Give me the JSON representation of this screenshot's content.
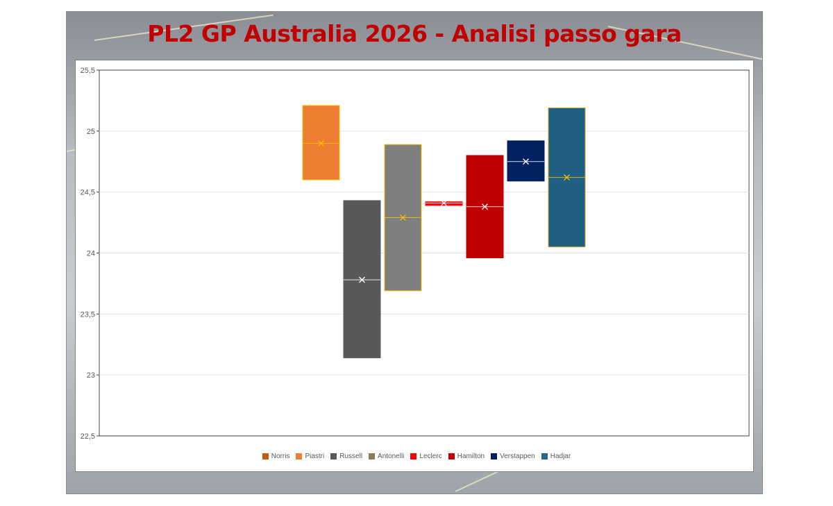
{
  "title": "PL2 GP Australia 2026 - Analisi passo gara",
  "colors": {
    "title": "#c00000",
    "Norris": "#c55a11",
    "Piastri": "#ed7d31",
    "Russell": "#595959",
    "Antonelli": "#8c7b5a",
    "Leclerc": "#ff0000",
    "Hamilton": "#c00000",
    "Verstappen": "#002060",
    "Hadjar": "#1f6b86"
  },
  "chart_data": {
    "type": "bar",
    "subtype": "floating-range",
    "title": "",
    "xlabel": "",
    "ylabel": "",
    "ylim": [
      22.5,
      25.5
    ],
    "yticks": [
      "25,5",
      "25",
      "24,5",
      "24",
      "23,5",
      "23",
      "22,5"
    ],
    "grid": true,
    "legend_position": "bottom",
    "legend": [
      "Norris",
      "Piastri",
      "Russell",
      "Antonelli",
      "Leclerc",
      "Hamilton",
      "Verstappen",
      "Hadjar"
    ],
    "series": [
      {
        "name": "Piastri",
        "min": 24.6,
        "max": 25.21,
        "mean": 24.9,
        "fill": "#ed7d31",
        "border": "#ffc000",
        "mark": "#ffc000"
      },
      {
        "name": "Russell",
        "min": 23.14,
        "max": 24.43,
        "mean": 23.78,
        "fill": "#595959",
        "border": "#595959",
        "mark": "#ffffff"
      },
      {
        "name": "Antonelli",
        "min": 23.69,
        "max": 24.89,
        "mean": 24.29,
        "fill": "#7f7f7f",
        "border": "#ffc000",
        "mark": "#ffc000"
      },
      {
        "name": "Leclerc",
        "min": 24.39,
        "max": 24.42,
        "mean": 24.41,
        "fill": "#ff0000",
        "border": "#ff0000",
        "mark": "#ffffff"
      },
      {
        "name": "Hamilton",
        "min": 23.96,
        "max": 24.8,
        "mean": 24.38,
        "fill": "#c00000",
        "border": "#c00000",
        "mark": "#ffffff"
      },
      {
        "name": "Verstappen",
        "min": 24.59,
        "max": 24.92,
        "mean": 24.75,
        "fill": "#002060",
        "border": "#002060",
        "mark": "#ffffff"
      },
      {
        "name": "Hadjar",
        "min": 24.05,
        "max": 25.19,
        "mean": 24.62,
        "fill": "#1f5f82",
        "border": "#c9a227",
        "mark": "#ffc000"
      }
    ]
  }
}
